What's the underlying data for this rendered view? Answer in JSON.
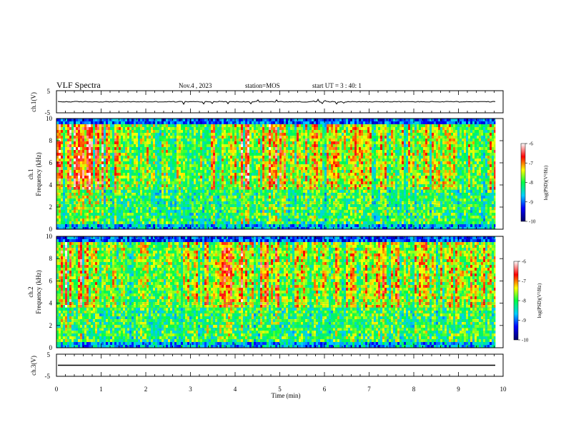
{
  "header": {
    "title": "VLF Spectra",
    "date": "Nov.4 , 2023",
    "station": "station=MOS",
    "start": "start UT = 3 : 40: 1"
  },
  "chart_data": [
    {
      "type": "line",
      "panel": "ch1-waveform",
      "ylabel": "ch.1(V)",
      "ylim": [
        -5,
        5
      ],
      "yticks": [
        "5",
        "-5"
      ],
      "series": [
        {
          "values": [
            0.0
          ]
        }
      ]
    },
    {
      "type": "heatmap",
      "panel": "ch1-spectrogram",
      "ylabel": "ch.1 Frequency (kHz)",
      "ylim": [
        0,
        10
      ],
      "yticks": [
        "0",
        "2",
        "4",
        "6",
        "8",
        "10"
      ],
      "xlim": [
        0,
        10
      ],
      "data_end_min": 9.83,
      "colorbar": {
        "label": "log(PSD)(V²/Hz)",
        "range": [
          -10,
          -6
        ],
        "ticks": [
          "-6",
          "-7",
          "-8",
          "-9",
          "-10"
        ],
        "colors": [
          "#000066",
          "#0000ff",
          "#00ccff",
          "#00ff44",
          "#ffff00",
          "#ff0000",
          "#ffffff"
        ]
      }
    },
    {
      "type": "heatmap",
      "panel": "ch2-spectrogram",
      "ylabel": "ch.2 Frequency (kHz)",
      "ylim": [
        0,
        10
      ],
      "yticks": [
        "0",
        "2",
        "4",
        "6",
        "8",
        "10"
      ],
      "xlim": [
        0,
        10
      ],
      "data_end_min": 9.83,
      "colorbar": {
        "label": "log(PSD)(V²/Hz)",
        "range": [
          -10,
          -6
        ],
        "ticks": [
          "-6",
          "-7",
          "-8",
          "-9",
          "-10"
        ],
        "colors": [
          "#000066",
          "#0000ff",
          "#00ccff",
          "#00ff44",
          "#ffff00",
          "#ff0000",
          "#ffffff"
        ]
      }
    },
    {
      "type": "line",
      "panel": "ch3-waveform",
      "ylabel": "ch.3(V)",
      "ylim": [
        -5,
        5
      ],
      "yticks": [
        "5",
        "-5"
      ],
      "series": [
        {
          "values": [
            0.0
          ]
        }
      ]
    }
  ],
  "xaxis": {
    "label": "Time (min)",
    "range": [
      0,
      10
    ],
    "ticks": [
      "0",
      "1",
      "2",
      "3",
      "4",
      "5",
      "6",
      "7",
      "8",
      "9",
      "10"
    ]
  }
}
